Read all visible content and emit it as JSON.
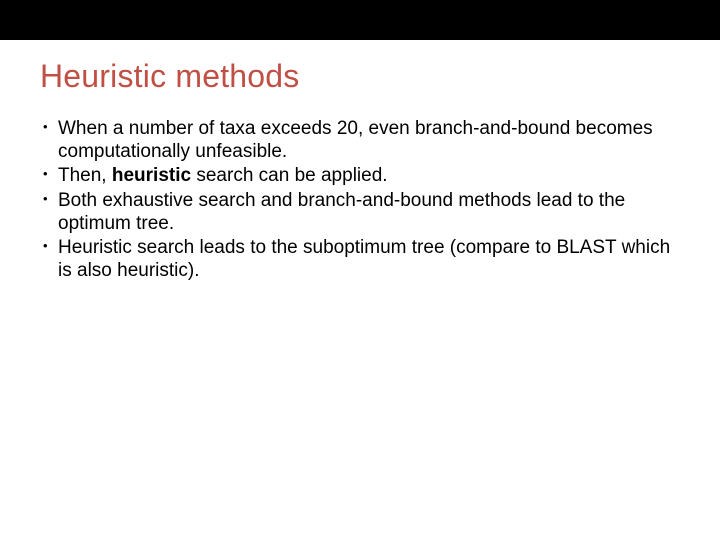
{
  "slide": {
    "title": "Heuristic methods",
    "title_color": "#c05045",
    "title_fontsize": 32,
    "body_fontsize": 19,
    "background_color": "#ffffff",
    "topbar_color": "#000000",
    "bullets": [
      {
        "pre": "When a number of taxa exceeds 20, even branch-and-bound becomes computationally unfeasible.",
        "bold": "",
        "post": ""
      },
      {
        "pre": "Then, ",
        "bold": "heuristic",
        "post": " search can be applied."
      },
      {
        "pre": "Both exhaustive search and branch-and-bound methods lead to the optimum tree.",
        "bold": "",
        "post": ""
      },
      {
        "pre": "Heuristic search leads to the suboptimum tree (compare to BLAST which is also heuristic).",
        "bold": "",
        "post": ""
      }
    ]
  }
}
